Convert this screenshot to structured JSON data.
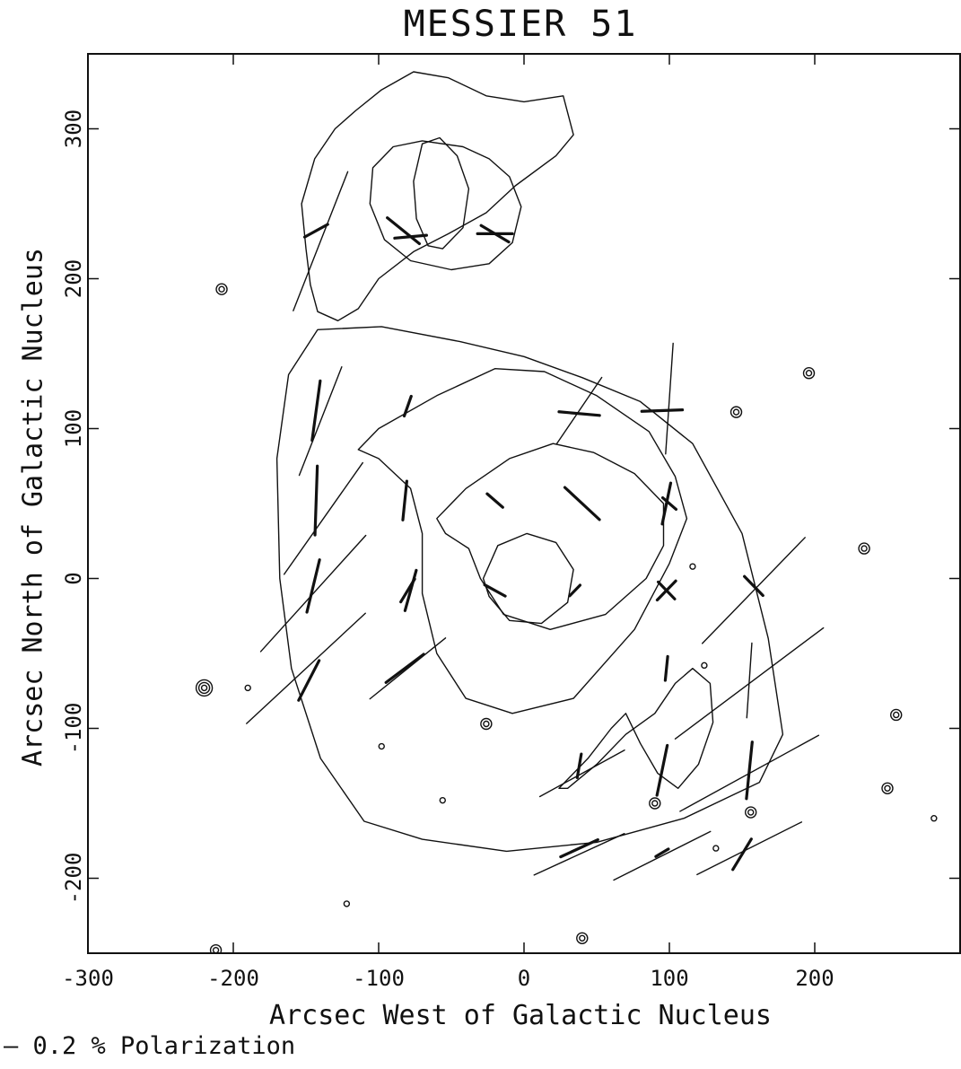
{
  "chart_data": {
    "type": "scatter",
    "title": "MESSIER 51",
    "xlabel": "Arcsec West of Galactic Nucleus",
    "ylabel": "Arcsec North of Galactic Nucleus",
    "xlim": [
      -300,
      300
    ],
    "ylim": [
      -250,
      350
    ],
    "x_ticks": [
      -300,
      -200,
      -100,
      0,
      100,
      200
    ],
    "y_ticks": [
      -200,
      -100,
      0,
      100,
      200,
      300
    ],
    "x_tick_labels": [
      "-300",
      "-200",
      "-100",
      "0",
      "100",
      "200"
    ],
    "y_tick_labels": [
      "-200",
      "-100",
      "0",
      "100",
      "200",
      "300"
    ],
    "grid": false,
    "legend": {
      "placement": "bottom-left",
      "label": "— 0.2 % Polarization",
      "scale_percent": 0.2
    },
    "contours": [
      {
        "name": "companion-outer",
        "points": [
          [
            -147,
            196
          ],
          [
            -142,
            178
          ],
          [
            -128,
            172
          ],
          [
            -114,
            180
          ],
          [
            -100,
            200
          ],
          [
            -76,
            218
          ],
          [
            -52,
            230
          ],
          [
            -26,
            244
          ],
          [
            -6,
            262
          ],
          [
            22,
            282
          ],
          [
            34,
            296
          ],
          [
            27,
            322
          ],
          [
            0,
            318
          ],
          [
            -26,
            322
          ],
          [
            -52,
            334
          ],
          [
            -76,
            338
          ],
          [
            -98,
            326
          ],
          [
            -116,
            312
          ],
          [
            -130,
            300
          ],
          [
            -144,
            280
          ],
          [
            -153,
            250
          ],
          [
            -150,
            220
          ],
          [
            -147,
            196
          ]
        ]
      },
      {
        "name": "companion-mid",
        "points": [
          [
            -106,
            250
          ],
          [
            -96,
            226
          ],
          [
            -78,
            212
          ],
          [
            -50,
            206
          ],
          [
            -24,
            210
          ],
          [
            -8,
            224
          ],
          [
            -2,
            248
          ],
          [
            -10,
            268
          ],
          [
            -24,
            280
          ],
          [
            -42,
            288
          ],
          [
            -70,
            292
          ],
          [
            -90,
            288
          ],
          [
            -104,
            274
          ],
          [
            -106,
            250
          ]
        ]
      },
      {
        "name": "companion-inner",
        "points": [
          [
            -76,
            265
          ],
          [
            -74,
            240
          ],
          [
            -66,
            222
          ],
          [
            -56,
            220
          ],
          [
            -42,
            234
          ],
          [
            -38,
            260
          ],
          [
            -46,
            282
          ],
          [
            -58,
            294
          ],
          [
            -70,
            290
          ],
          [
            -76,
            265
          ]
        ]
      },
      {
        "name": "main-outer",
        "points": [
          [
            -140,
            -120
          ],
          [
            -110,
            -162
          ],
          [
            -70,
            -174
          ],
          [
            -12,
            -182
          ],
          [
            50,
            -176
          ],
          [
            110,
            -160
          ],
          [
            162,
            -136
          ],
          [
            178,
            -104
          ],
          [
            168,
            -40
          ],
          [
            150,
            30
          ],
          [
            116,
            90
          ],
          [
            80,
            118
          ],
          [
            40,
            134
          ],
          [
            0,
            148
          ],
          [
            -44,
            158
          ],
          [
            -98,
            168
          ],
          [
            -142,
            166
          ],
          [
            -162,
            136
          ],
          [
            -170,
            80
          ],
          [
            -168,
            0
          ],
          [
            -160,
            -60
          ],
          [
            -140,
            -120
          ]
        ]
      },
      {
        "name": "arm-outer",
        "points": [
          [
            -114,
            86
          ],
          [
            -100,
            100
          ],
          [
            -60,
            122
          ],
          [
            -20,
            140
          ],
          [
            14,
            138
          ],
          [
            50,
            122
          ],
          [
            86,
            98
          ],
          [
            104,
            68
          ],
          [
            112,
            40
          ],
          [
            100,
            10
          ],
          [
            76,
            -34
          ],
          [
            34,
            -80
          ],
          [
            -8,
            -90
          ],
          [
            -40,
            -80
          ],
          [
            -60,
            -50
          ],
          [
            -70,
            -10
          ],
          [
            -70,
            30
          ],
          [
            -78,
            60
          ],
          [
            -100,
            80
          ],
          [
            -114,
            86
          ]
        ]
      },
      {
        "name": "arm-inner",
        "points": [
          [
            -60,
            40
          ],
          [
            -40,
            60
          ],
          [
            -10,
            80
          ],
          [
            20,
            90
          ],
          [
            48,
            84
          ],
          [
            76,
            70
          ],
          [
            96,
            50
          ],
          [
            96,
            22
          ],
          [
            84,
            0
          ],
          [
            56,
            -24
          ],
          [
            18,
            -34
          ],
          [
            -14,
            -24
          ],
          [
            -30,
            0
          ],
          [
            -38,
            20
          ],
          [
            -54,
            30
          ],
          [
            -60,
            40
          ]
        ]
      },
      {
        "name": "nucleus",
        "points": [
          [
            -28,
            0
          ],
          [
            -18,
            22
          ],
          [
            2,
            30
          ],
          [
            22,
            24
          ],
          [
            34,
            6
          ],
          [
            30,
            -16
          ],
          [
            12,
            -30
          ],
          [
            -10,
            -28
          ],
          [
            -24,
            -12
          ],
          [
            -28,
            0
          ]
        ]
      },
      {
        "name": "sw-arm",
        "points": [
          [
            24,
            -140
          ],
          [
            44,
            -120
          ],
          [
            60,
            -100
          ],
          [
            70,
            -90
          ],
          [
            80,
            -110
          ],
          [
            92,
            -130
          ],
          [
            106,
            -140
          ],
          [
            120,
            -124
          ],
          [
            130,
            -96
          ],
          [
            128,
            -70
          ],
          [
            116,
            -60
          ],
          [
            104,
            -70
          ],
          [
            90,
            -90
          ],
          [
            70,
            -104
          ],
          [
            50,
            -124
          ],
          [
            30,
            -140
          ],
          [
            24,
            -140
          ]
        ]
      }
    ],
    "stars": [
      {
        "x": -208,
        "y": 193,
        "rings": 2
      },
      {
        "x": -220,
        "y": -73,
        "rings": 3
      },
      {
        "x": -212,
        "y": -248,
        "rings": 2
      },
      {
        "x": -122,
        "y": -217,
        "rings": 1
      },
      {
        "x": -98,
        "y": -112,
        "rings": 1
      },
      {
        "x": -56,
        "y": -148,
        "rings": 1
      },
      {
        "x": -26,
        "y": -97,
        "rings": 2
      },
      {
        "x": 40,
        "y": -240,
        "rings": 2
      },
      {
        "x": 90,
        "y": -150,
        "rings": 2
      },
      {
        "x": 132,
        "y": -180,
        "rings": 1
      },
      {
        "x": 146,
        "y": 111,
        "rings": 2
      },
      {
        "x": 156,
        "y": -156,
        "rings": 2
      },
      {
        "x": 196,
        "y": 137,
        "rings": 2
      },
      {
        "x": 234,
        "y": 20,
        "rings": 2
      },
      {
        "x": 250,
        "y": -140,
        "rings": 2
      },
      {
        "x": 256,
        "y": -91,
        "rings": 2
      },
      {
        "x": 282,
        "y": -160,
        "rings": 1
      },
      {
        "x": 116,
        "y": 8,
        "rings": 1
      },
      {
        "x": 124,
        "y": -58,
        "rings": 1
      },
      {
        "x": -190,
        "y": -73,
        "rings": 1
      }
    ],
    "polarization_vectors": [
      {
        "x": -140,
        "y": 225,
        "length": 100,
        "angle": 68
      },
      {
        "x": -143,
        "y": 232,
        "length": 18,
        "angle": 28
      },
      {
        "x": -83,
        "y": 232,
        "length": 28,
        "angle": -38
      },
      {
        "x": -78,
        "y": 228,
        "length": 22,
        "angle": 5
      },
      {
        "x": -20,
        "y": 230,
        "length": 24,
        "angle": 0
      },
      {
        "x": -20,
        "y": 230,
        "length": 22,
        "angle": -30
      },
      {
        "x": -143,
        "y": 112,
        "length": 40,
        "angle": 82
      },
      {
        "x": -140,
        "y": 105,
        "length": 78,
        "angle": 68
      },
      {
        "x": -80,
        "y": 115,
        "length": 14,
        "angle": 70
      },
      {
        "x": 38,
        "y": 110,
        "length": 28,
        "angle": -5
      },
      {
        "x": 38,
        "y": 112,
        "length": 54,
        "angle": 55
      },
      {
        "x": 95,
        "y": 112,
        "length": 28,
        "angle": 2
      },
      {
        "x": 100,
        "y": 120,
        "length": 74,
        "angle": 86
      },
      {
        "x": -143,
        "y": 52,
        "length": 46,
        "angle": 88
      },
      {
        "x": -138,
        "y": 40,
        "length": 92,
        "angle": 54
      },
      {
        "x": -82,
        "y": 52,
        "length": 26,
        "angle": 84
      },
      {
        "x": -20,
        "y": 52,
        "length": 14,
        "angle": -40
      },
      {
        "x": 40,
        "y": 50,
        "length": 32,
        "angle": -42
      },
      {
        "x": 100,
        "y": 50,
        "length": 12,
        "angle": -40
      },
      {
        "x": 98,
        "y": 50,
        "length": 28,
        "angle": 78
      },
      {
        "x": -145,
        "y": -5,
        "length": 36,
        "angle": 76
      },
      {
        "x": -145,
        "y": -10,
        "length": 106,
        "angle": 47
      },
      {
        "x": -78,
        "y": -8,
        "length": 28,
        "angle": 74
      },
      {
        "x": -80,
        "y": -8,
        "length": 18,
        "angle": 58
      },
      {
        "x": -20,
        "y": -8,
        "length": 16,
        "angle": -28
      },
      {
        "x": 35,
        "y": -8,
        "length": 10,
        "angle": 45
      },
      {
        "x": 98,
        "y": -8,
        "length": 18,
        "angle": 45
      },
      {
        "x": 98,
        "y": -8,
        "length": 16,
        "angle": -45
      },
      {
        "x": 158,
        "y": -8,
        "length": 100,
        "angle": 45
      },
      {
        "x": 158,
        "y": -5,
        "length": 18,
        "angle": -45
      },
      {
        "x": -148,
        "y": -68,
        "length": 30,
        "angle": 62
      },
      {
        "x": -150,
        "y": -60,
        "length": 110,
        "angle": 42
      },
      {
        "x": -82,
        "y": -60,
        "length": 32,
        "angle": 36
      },
      {
        "x": -80,
        "y": -60,
        "length": 66,
        "angle": 38
      },
      {
        "x": 98,
        "y": -60,
        "length": 16,
        "angle": 84
      },
      {
        "x": 155,
        "y": -68,
        "length": 50,
        "angle": 86
      },
      {
        "x": 155,
        "y": -70,
        "length": 126,
        "angle": 36
      },
      {
        "x": 38,
        "y": -125,
        "length": 16,
        "angle": 80
      },
      {
        "x": 40,
        "y": -130,
        "length": 66,
        "angle": 28
      },
      {
        "x": 95,
        "y": -128,
        "length": 34,
        "angle": 78
      },
      {
        "x": 155,
        "y": -128,
        "length": 38,
        "angle": 84
      },
      {
        "x": 155,
        "y": -130,
        "length": 108,
        "angle": 28
      },
      {
        "x": 38,
        "y": -180,
        "length": 28,
        "angle": 24
      },
      {
        "x": 38,
        "y": -184,
        "length": 68,
        "angle": 24
      },
      {
        "x": 95,
        "y": -183,
        "length": 10,
        "angle": 30
      },
      {
        "x": 95,
        "y": -185,
        "length": 74,
        "angle": 26
      },
      {
        "x": 150,
        "y": -184,
        "length": 24,
        "angle": 58
      },
      {
        "x": 155,
        "y": -180,
        "length": 80,
        "angle": 26
      }
    ]
  }
}
